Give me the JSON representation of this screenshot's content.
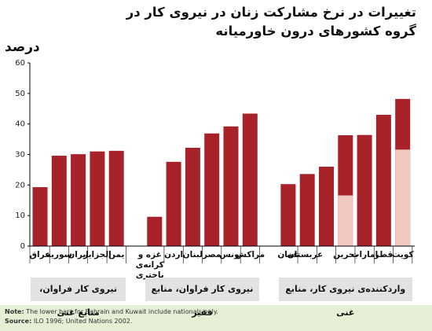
{
  "chart_data": {
    "type": "bar",
    "title": "تغییرات در نرخ مشارکت زنان در نیروی کار در گروه کشورهای درون خاورمیانه",
    "ylabel": "درصد",
    "categories": [
      "عراق",
      "سوریه",
      "ایران",
      "الجزایر",
      "یمن",
      "غزه و کرانه‌ی باختری",
      "اردن",
      "لبنان",
      "مصر",
      "تونس",
      "مراکش",
      "عمان",
      "عربستان",
      null,
      "بحرین",
      "امارات",
      "قطر",
      "کویت"
    ],
    "values": [
      19.3,
      29.6,
      30.1,
      31.0,
      31.2,
      9.6,
      27.6,
      32.2,
      36.9,
      39.2,
      43.4,
      20.3,
      23.6,
      26.0,
      36.3,
      36.4,
      43.0,
      48.2
    ],
    "nationals": [
      null,
      null,
      null,
      null,
      null,
      null,
      null,
      null,
      null,
      null,
      null,
      null,
      null,
      null,
      16.6,
      null,
      null,
      31.6
    ],
    "color": "#a8222a",
    "nationals_color": "#f2c9c0",
    "groups": [
      "نیروی کار فراوان، منابع غنی",
      "نیروی کار فراوان، منابع فقیر",
      "واردکننده‌ی نیروی کار، منابع غنی"
    ],
    "ylim": [
      0,
      60
    ],
    "yticks": [
      0,
      10,
      20,
      30,
      40,
      50,
      60
    ],
    "note_label": "Note:",
    "note": "The lower bars for Bahrain and Kuwait include nationals only.",
    "source_label": "Source:",
    "source": "ILO 1996; United Nations 2002."
  }
}
